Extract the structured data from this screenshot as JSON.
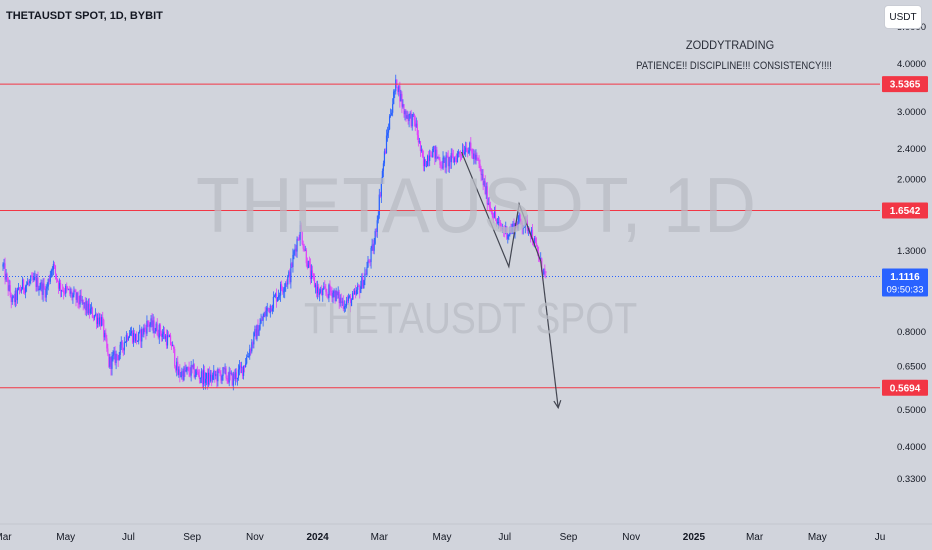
{
  "header": {
    "symbol_title": "THETAUSDT SPOT, 1D, BYBIT",
    "currency_button": "USDT"
  },
  "watermark": {
    "main": "THETAUSDT, 1D",
    "sub": "THETAUSDT SPOT"
  },
  "annotations": {
    "title": "ZODDYTRADING",
    "subtitle": "PATIENCE!! DISCIPLINE!!! CONSISTENCY!!!!"
  },
  "chart_data": {
    "type": "candlestick",
    "scale": "log",
    "ylim": [
      0.29,
      5.2
    ],
    "x_start": "2023-03-01",
    "x_end": "2025-07-01",
    "x_ticks": [
      {
        "date": "2023-03-01",
        "label": "Mar"
      },
      {
        "date": "2023-05-01",
        "label": "May"
      },
      {
        "date": "2023-07-01",
        "label": "Jul"
      },
      {
        "date": "2023-09-01",
        "label": "Sep"
      },
      {
        "date": "2023-11-01",
        "label": "Nov"
      },
      {
        "date": "2024-01-01",
        "label": "2024"
      },
      {
        "date": "2024-03-01",
        "label": "Mar"
      },
      {
        "date": "2024-05-01",
        "label": "May"
      },
      {
        "date": "2024-07-01",
        "label": "Jul"
      },
      {
        "date": "2024-09-01",
        "label": "Sep"
      },
      {
        "date": "2024-11-01",
        "label": "Nov"
      },
      {
        "date": "2025-01-01",
        "label": "2025"
      },
      {
        "date": "2025-03-01",
        "label": "Mar"
      },
      {
        "date": "2025-05-01",
        "label": "May"
      },
      {
        "date": "2025-07-01",
        "label": "Ju"
      }
    ],
    "y_ticks": [
      {
        "value": 5.0,
        "label": "5.0000"
      },
      {
        "value": 4.0,
        "label": "4.0000"
      },
      {
        "value": 3.0,
        "label": "3.0000"
      },
      {
        "value": 2.4,
        "label": "2.4000"
      },
      {
        "value": 2.0,
        "label": "2.0000"
      },
      {
        "value": 1.3,
        "label": "1.3000"
      },
      {
        "value": 0.8,
        "label": "0.8000"
      },
      {
        "value": 0.65,
        "label": "0.6500"
      },
      {
        "value": 0.5,
        "label": "0.5000"
      },
      {
        "value": 0.4,
        "label": "0.4000"
      },
      {
        "value": 0.33,
        "label": "0.3300"
      }
    ],
    "horizontal_levels": [
      {
        "value": 3.5365,
        "label": "3.5365",
        "color": "#f23645"
      },
      {
        "value": 1.6542,
        "label": "1.6542",
        "color": "#f23645"
      },
      {
        "value": 0.5694,
        "label": "0.5694",
        "color": "#f23645"
      }
    ],
    "last_price": {
      "value": 1.1116,
      "label": "1.1116",
      "countdown": "09:50:33",
      "color": "#2962ff"
    },
    "price_path": [
      [
        "2023-03-01",
        1.18
      ],
      [
        "2023-03-10",
        0.95
      ],
      [
        "2023-03-20",
        1.05
      ],
      [
        "2023-04-01",
        1.08
      ],
      [
        "2023-04-12",
        1.02
      ],
      [
        "2023-04-18",
        1.2
      ],
      [
        "2023-04-25",
        1.05
      ],
      [
        "2023-05-10",
        0.98
      ],
      [
        "2023-05-25",
        0.9
      ],
      [
        "2023-06-05",
        0.85
      ],
      [
        "2023-06-12",
        0.66
      ],
      [
        "2023-06-22",
        0.7
      ],
      [
        "2023-07-01",
        0.8
      ],
      [
        "2023-07-10",
        0.76
      ],
      [
        "2023-07-20",
        0.84
      ],
      [
        "2023-08-01",
        0.8
      ],
      [
        "2023-08-12",
        0.74
      ],
      [
        "2023-08-18",
        0.62
      ],
      [
        "2023-09-01",
        0.63
      ],
      [
        "2023-09-15",
        0.6
      ],
      [
        "2023-10-01",
        0.62
      ],
      [
        "2023-10-10",
        0.6
      ],
      [
        "2023-10-20",
        0.64
      ],
      [
        "2023-11-01",
        0.78
      ],
      [
        "2023-11-12",
        0.9
      ],
      [
        "2023-11-25",
        1.02
      ],
      [
        "2023-12-05",
        1.12
      ],
      [
        "2023-12-10",
        1.32
      ],
      [
        "2023-12-15",
        1.48
      ],
      [
        "2023-12-25",
        1.12
      ],
      [
        "2024-01-03",
        1.0
      ],
      [
        "2024-01-15",
        1.02
      ],
      [
        "2024-01-25",
        0.95
      ],
      [
        "2024-02-05",
        0.97
      ],
      [
        "2024-02-15",
        1.1
      ],
      [
        "2024-02-25",
        1.35
      ],
      [
        "2024-03-05",
        2.2
      ],
      [
        "2024-03-12",
        3.0
      ],
      [
        "2024-03-18",
        3.6
      ],
      [
        "2024-03-25",
        3.0
      ],
      [
        "2024-04-05",
        2.8
      ],
      [
        "2024-04-13",
        2.15
      ],
      [
        "2024-04-20",
        2.4
      ],
      [
        "2024-05-01",
        2.2
      ],
      [
        "2024-05-12",
        2.25
      ],
      [
        "2024-05-25",
        2.45
      ],
      [
        "2024-06-05",
        2.2
      ],
      [
        "2024-06-15",
        1.75
      ],
      [
        "2024-06-25",
        1.5
      ],
      [
        "2024-07-05",
        1.45
      ],
      [
        "2024-07-15",
        1.55
      ],
      [
        "2024-07-25",
        1.5
      ],
      [
        "2024-08-05",
        1.2
      ],
      [
        "2024-08-10",
        1.11
      ]
    ],
    "drawings": [
      {
        "type": "path",
        "points": [
          [
            "2024-05-20",
            2.35
          ],
          [
            "2024-07-05",
            1.18
          ],
          [
            "2024-07-15",
            1.72
          ],
          [
            "2024-08-05",
            1.22
          ]
        ]
      },
      {
        "type": "arrow",
        "points": [
          [
            "2024-08-05",
            1.22
          ],
          [
            "2024-08-22",
            0.505
          ]
        ]
      }
    ],
    "colors": {
      "up": "#2962ff",
      "down": "#e040fb",
      "background": "#d1d4dc",
      "grid": "#c8cbd3"
    }
  }
}
